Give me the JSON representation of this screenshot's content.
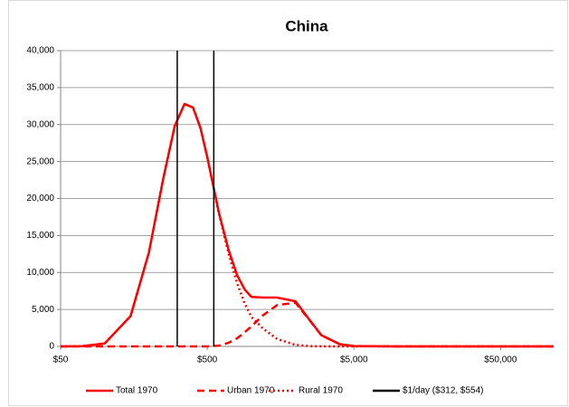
{
  "chart_data": {
    "type": "line",
    "title": "China",
    "log_x": true,
    "grid": true,
    "legend": "bottom",
    "x": [
      50,
      70,
      100,
      150,
      200,
      250,
      300,
      350,
      400,
      450,
      500,
      600,
      700,
      800,
      900,
      1000,
      1200,
      1500,
      2000,
      2500,
      3000,
      4000,
      5000,
      10000,
      50000,
      115000
    ],
    "series": [
      {
        "name": "Total 1970",
        "color": "#ff0000",
        "dash": "solid",
        "values": [
          0,
          30,
          400,
          4100,
          12700,
          22600,
          29800,
          32800,
          32300,
          29500,
          25600,
          18100,
          13000,
          9600,
          7700,
          6700,
          6600,
          6600,
          6100,
          3540,
          1510,
          300,
          50,
          0,
          0,
          0
        ]
      },
      {
        "name": "Urban 1970",
        "color": "#ff0000",
        "dash": "dashed",
        "values": [
          0,
          0,
          0,
          0,
          0,
          0,
          0,
          0,
          0,
          0,
          0,
          100,
          500,
          1100,
          1900,
          2700,
          4200,
          5600,
          5900,
          3500,
          1500,
          300,
          50,
          0,
          0,
          0
        ]
      },
      {
        "name": "Rural 1970",
        "color": "#ff0000",
        "dash": "dotted",
        "values": [
          0,
          30,
          400,
          4100,
          12700,
          22600,
          29800,
          32800,
          32300,
          29500,
          25600,
          18000,
          12500,
          8500,
          5800,
          4000,
          2400,
          1000,
          200,
          40,
          10,
          0,
          0,
          0,
          0,
          0
        ]
      },
      {
        "name": "$1/day ($312, $554)",
        "color": "#000000",
        "dash": "solid",
        "vlines": [
          312,
          554
        ]
      }
    ],
    "xlim": [
      50,
      115000
    ],
    "xticks": [
      {
        "value": 50,
        "label": "$50"
      },
      {
        "value": 500,
        "label": "$500"
      },
      {
        "value": 5000,
        "label": "$5,000"
      },
      {
        "value": 50000,
        "label": "$50,000"
      }
    ],
    "ylim": [
      0,
      40000
    ],
    "yticks": [
      0,
      {
        "value": 5000,
        "label": "5,000"
      },
      {
        "value": 10000,
        "label": "10,000"
      },
      {
        "value": 15000,
        "label": "15,000"
      },
      {
        "value": 20000,
        "label": "20,000"
      },
      {
        "value": 25000,
        "label": "25,000"
      },
      {
        "value": 30000,
        "label": "30,000"
      },
      {
        "value": 35000,
        "label": "35,000"
      },
      {
        "value": 40000,
        "label": "40,000"
      }
    ]
  }
}
